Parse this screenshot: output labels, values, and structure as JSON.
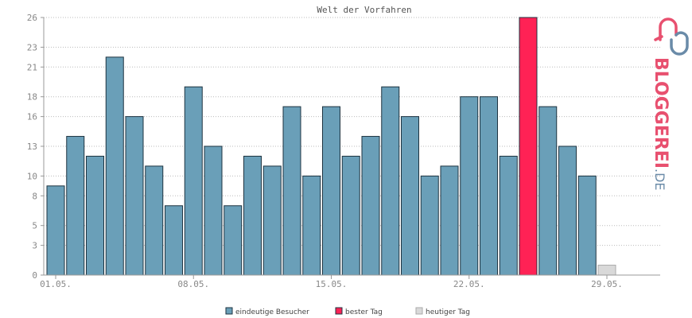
{
  "chart_data": {
    "type": "bar",
    "title": "Welt der Vorfahren",
    "x_ticks": [
      "01.05.",
      "08.05.",
      "15.05.",
      "22.05.",
      "29.05."
    ],
    "y_ticks": [
      "0",
      "3",
      "5",
      "8",
      "10",
      "13",
      "16",
      "18",
      "21",
      "23",
      "26"
    ],
    "ylim": [
      0,
      26
    ],
    "grid": true,
    "series": [
      {
        "name": "eindeutige Besucher",
        "color": "#6a9fb8",
        "values": [
          9,
          14,
          12,
          22,
          16,
          11,
          7,
          19,
          13,
          7,
          12,
          11,
          17,
          10,
          17,
          12,
          14,
          19,
          16,
          10,
          11,
          18,
          18,
          12,
          null,
          17,
          13,
          10,
          null,
          null,
          null
        ]
      },
      {
        "name": "bester Tag",
        "color": "#ff2255",
        "values": [
          null,
          null,
          null,
          null,
          null,
          null,
          null,
          null,
          null,
          null,
          null,
          null,
          null,
          null,
          null,
          null,
          null,
          null,
          null,
          null,
          null,
          null,
          null,
          null,
          26,
          null,
          null,
          null,
          null,
          null,
          null
        ]
      },
      {
        "name": "heutiger Tag",
        "color": "#d9d9d9",
        "values": [
          null,
          null,
          null,
          null,
          null,
          null,
          null,
          null,
          null,
          null,
          null,
          null,
          null,
          null,
          null,
          null,
          null,
          null,
          null,
          null,
          null,
          null,
          null,
          null,
          null,
          null,
          null,
          null,
          1,
          0,
          0
        ]
      }
    ],
    "legend_position": "bottom"
  },
  "logo": {
    "text_main": "BLOGGEREI",
    "text_suffix": ".DE",
    "colors": {
      "pink": "#e8506f",
      "blue": "#6a8ba8"
    }
  }
}
